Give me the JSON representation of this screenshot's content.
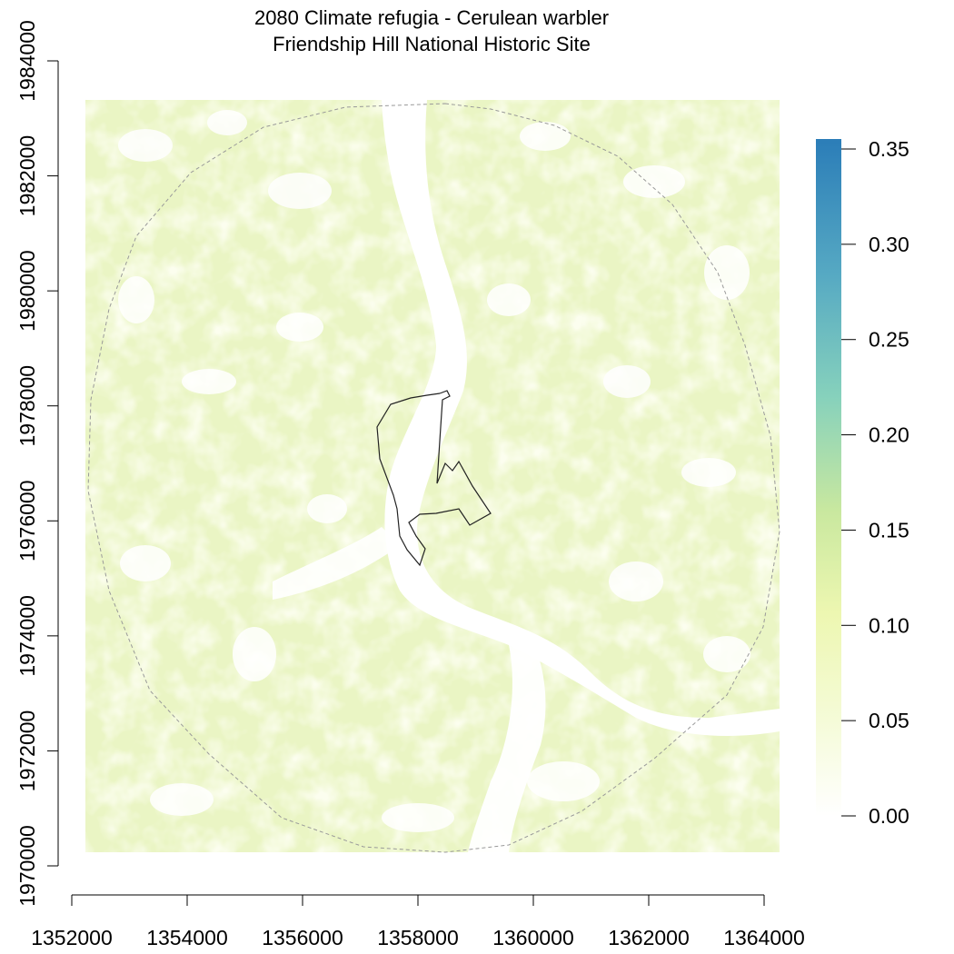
{
  "title_line1": "2080 Climate refugia - Cerulean warbler",
  "title_line2": "Friendship Hill National Historic Site",
  "x_axis": {
    "ticks": [
      "1352000",
      "1354000",
      "1356000",
      "1358000",
      "1360000",
      "1362000",
      "1364000"
    ],
    "range": [
      1352000,
      1364000
    ]
  },
  "y_axis": {
    "ticks": [
      "1970000",
      "1972000",
      "1974000",
      "1976000",
      "1978000",
      "1980000",
      "1982000",
      "1984000"
    ],
    "range": [
      1970000,
      1984000
    ]
  },
  "legend": {
    "labels": [
      "0.00",
      "0.05",
      "0.10",
      "0.15",
      "0.20",
      "0.25",
      "0.30",
      "0.35"
    ],
    "range": [
      0,
      0.35
    ],
    "colors": [
      "#ffffe5",
      "#f7fcb9",
      "#d9f0a3",
      "#addd8e",
      "#78c679",
      "#41ab5d",
      "#2c7fb8"
    ],
    "colormap": "yellow-green-blue"
  },
  "map": {
    "raster_fill": "#eaf5c4",
    "background": "#ffffff",
    "features": [
      "park-boundary",
      "buffer-boundary",
      "river"
    ],
    "buffer_boundary_style": "dashed-grey",
    "park_boundary_color": "#222222"
  }
}
